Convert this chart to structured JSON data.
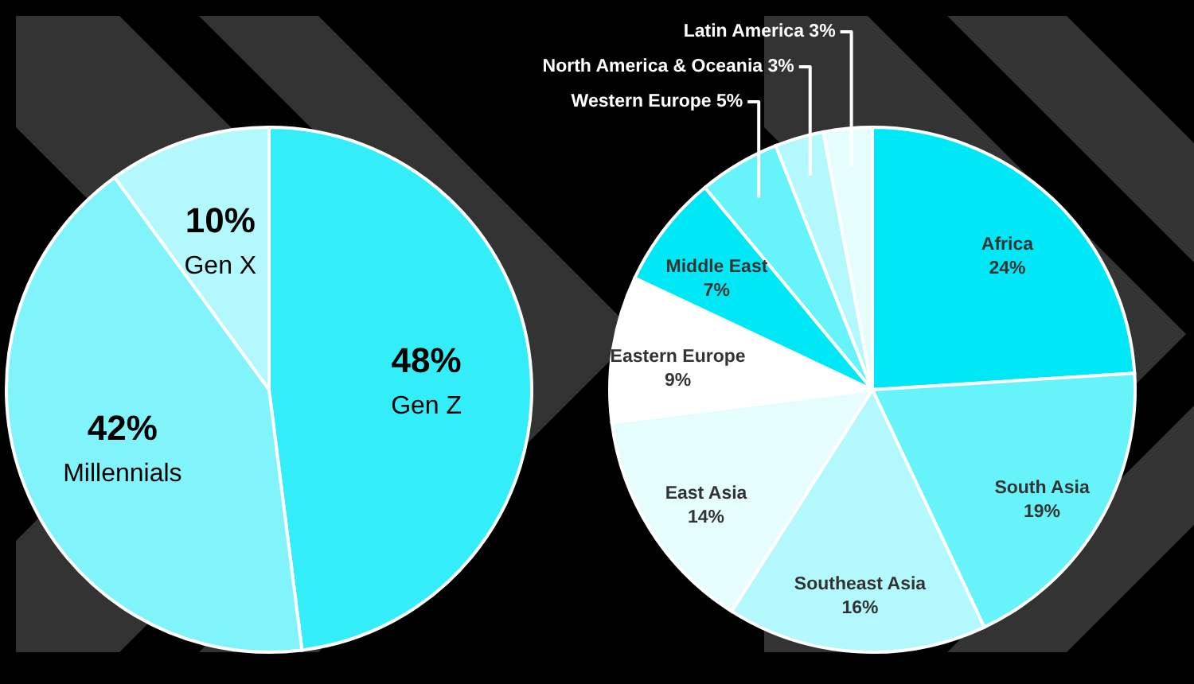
{
  "chart_data": [
    {
      "type": "pie",
      "categories": [
        "Gen Z",
        "Millennials",
        "Gen X"
      ],
      "values": [
        48,
        42,
        10
      ],
      "colors": [
        "#33eef8",
        "#80f4fa",
        "#b3f8fc"
      ],
      "value_labels": [
        "48%",
        "42%",
        "10%"
      ]
    },
    {
      "type": "pie",
      "categories": [
        "Africa",
        "South Asia",
        "Southeast Asia",
        "East Asia",
        "Eastern Europe",
        "Middle East",
        "Western Europe",
        "North America & Oceania",
        "Latin America"
      ],
      "values": [
        24,
        19,
        16,
        14,
        9,
        7,
        5,
        3,
        3
      ],
      "colors": [
        "#00e8f5",
        "#66f3fa",
        "#b3f8fc",
        "#e6fdfe",
        "#ffffff",
        "#00e8f5",
        "#66f3fa",
        "#b3f8fc",
        "#e6fdfe"
      ],
      "value_labels": [
        "24%",
        "19%",
        "16%",
        "14%",
        "9%",
        "7%",
        "5%",
        "3%",
        "3%"
      ]
    }
  ]
}
